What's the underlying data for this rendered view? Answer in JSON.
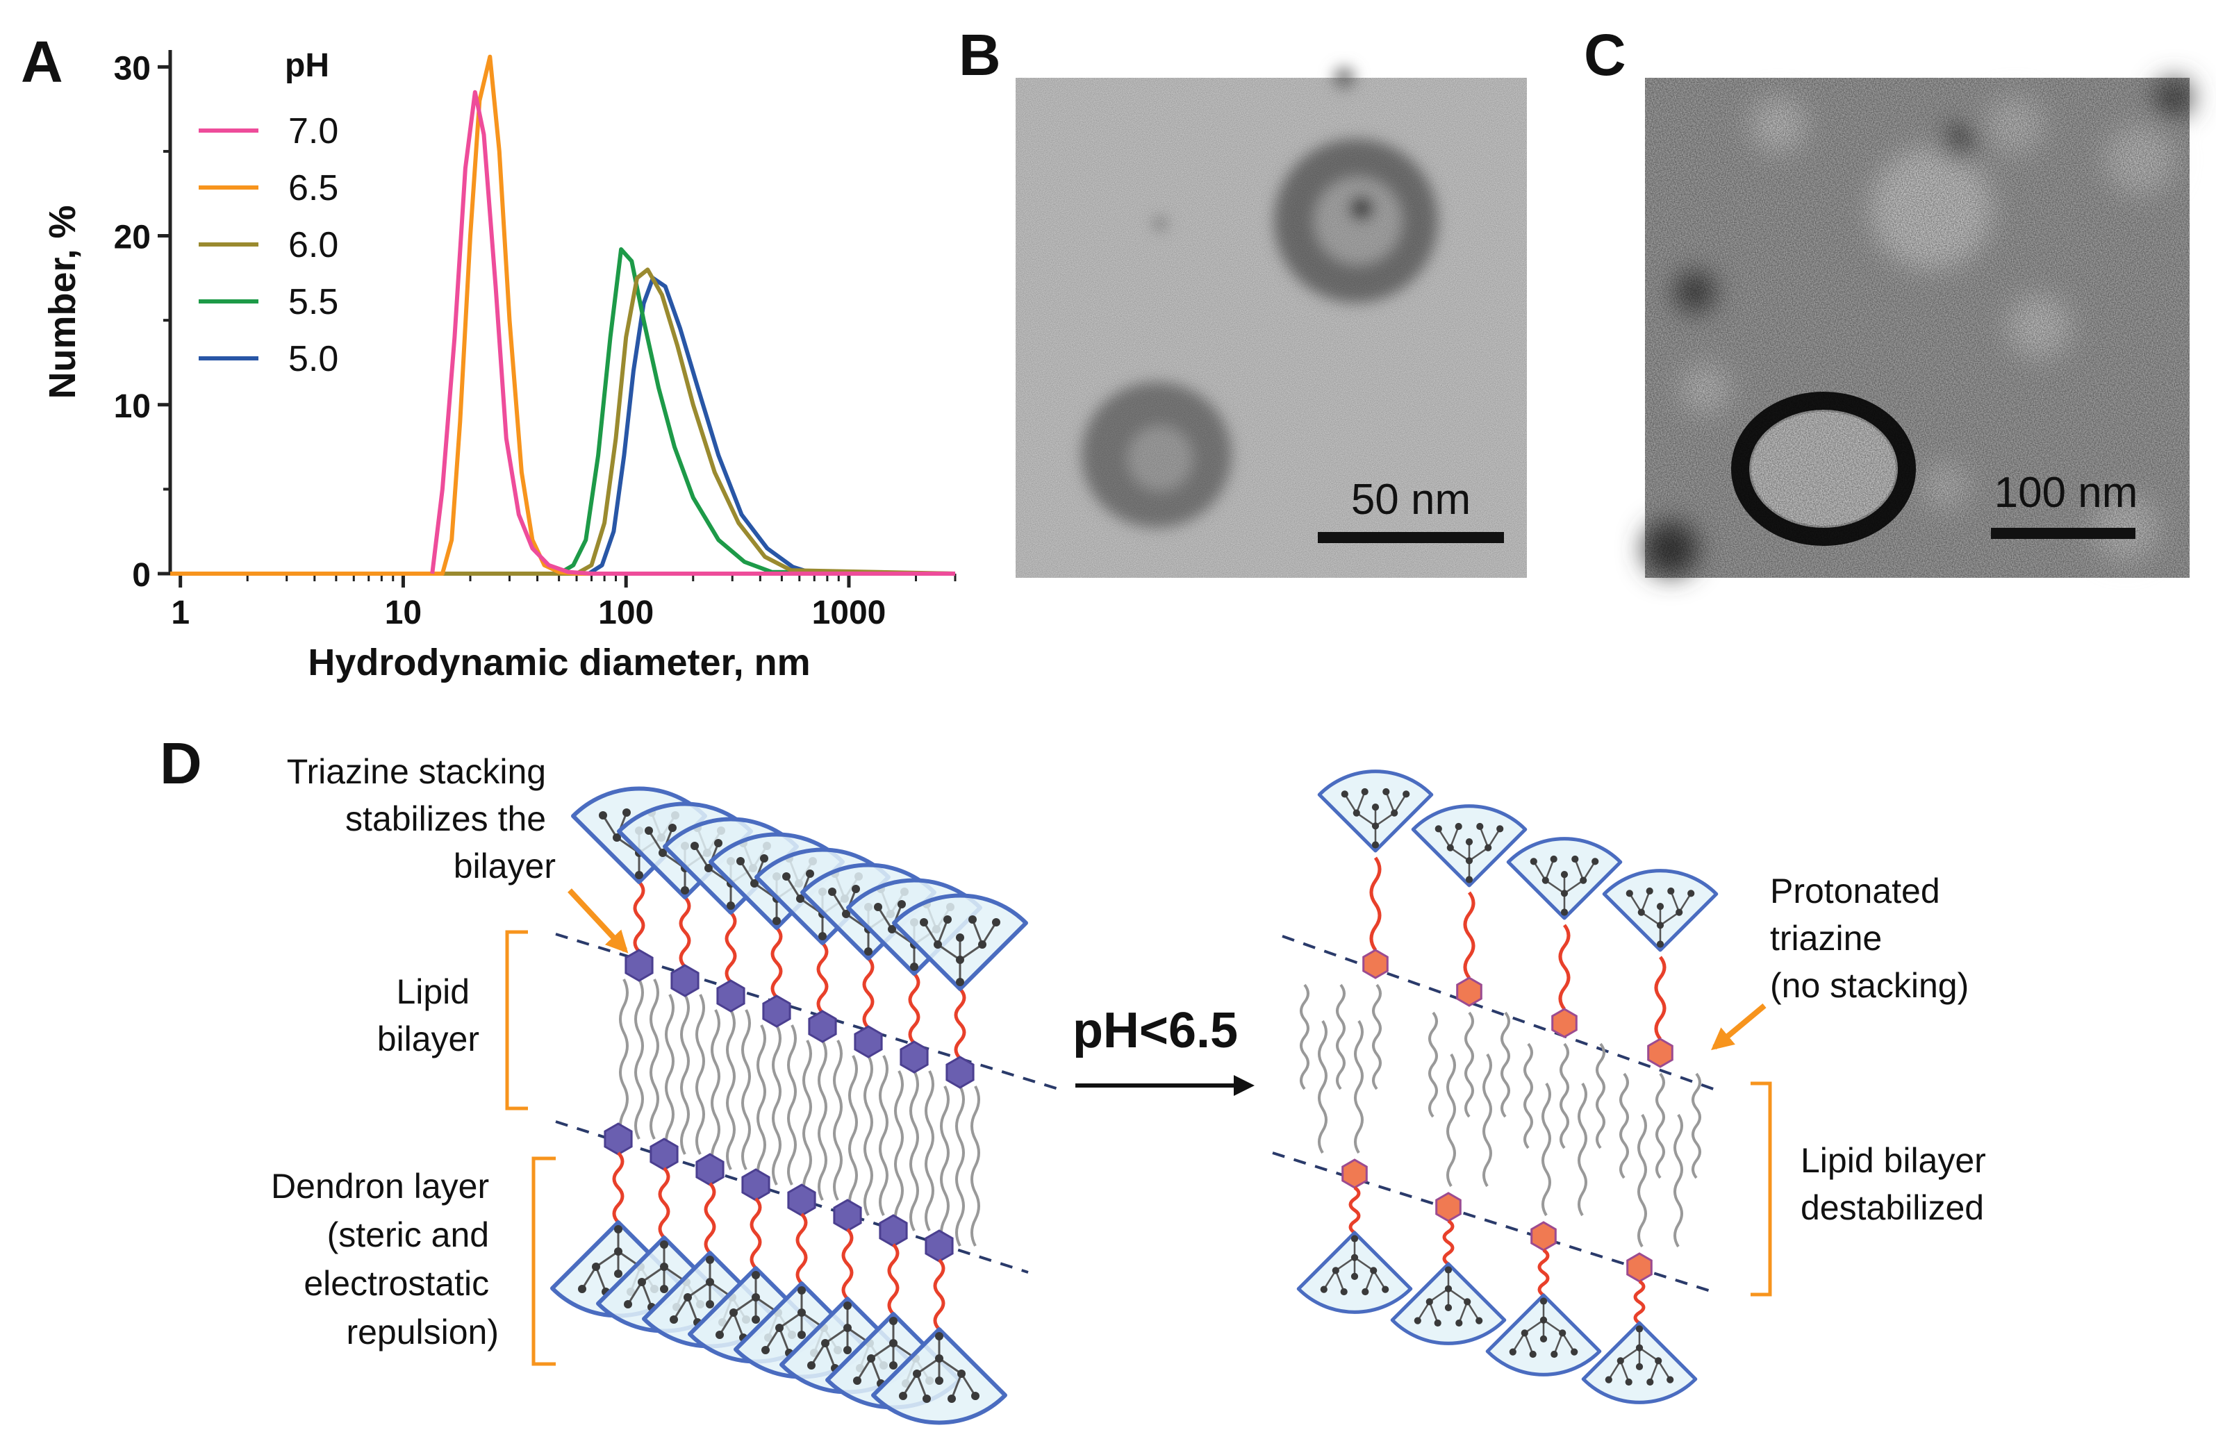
{
  "panels": {
    "a": "A",
    "b": "B",
    "c": "C",
    "d": "D"
  },
  "chart_data": {
    "type": "line",
    "xscale": "log",
    "xlabel": "Hydrodynamic diameter, nm",
    "ylabel": "Number, %",
    "xlim": [
      0.9,
      3000
    ],
    "ylim": [
      0,
      31
    ],
    "xticks": [
      "1",
      "10",
      "100",
      "1000"
    ],
    "yticks": [
      "0",
      "10",
      "20",
      "30"
    ],
    "legend_title": "pH",
    "legend_position": "top-left",
    "series": [
      {
        "name": "7.0",
        "color": "#ee4c9a",
        "x": [
          13.5,
          15,
          17,
          19,
          21,
          23,
          26,
          29,
          33,
          38,
          45,
          55,
          70,
          3000
        ],
        "y": [
          0,
          5,
          14,
          24,
          28.5,
          26,
          17,
          8,
          3.5,
          1.5,
          0.5,
          0.1,
          0,
          0
        ]
      },
      {
        "name": "6.5",
        "color": "#f7941d",
        "x": [
          0.9,
          15,
          16.5,
          18,
          20,
          22,
          24.5,
          27,
          30,
          34,
          38,
          43,
          50,
          60,
          3000
        ],
        "y": [
          0,
          0,
          2,
          9,
          20,
          28,
          30.6,
          25,
          15,
          6,
          2,
          0.5,
          0.1,
          0,
          0
        ]
      },
      {
        "name": "6.0",
        "color": "#9a8a2f",
        "x": [
          0.9,
          60,
          70,
          80,
          90,
          100,
          112,
          125,
          145,
          170,
          200,
          250,
          320,
          420,
          550,
          3000
        ],
        "y": [
          0,
          0,
          0.5,
          3,
          8,
          14,
          17.5,
          18,
          16.5,
          13.5,
          10,
          6,
          3,
          1,
          0.2,
          0
        ]
      },
      {
        "name": "5.5",
        "color": "#1d9a48",
        "x": [
          0.9,
          50,
          58,
          66,
          75,
          85,
          95,
          106,
          120,
          140,
          165,
          200,
          260,
          340,
          450,
          3000
        ],
        "y": [
          0,
          0,
          0.5,
          2,
          7,
          14,
          19.2,
          18.5,
          15,
          11,
          7.5,
          4.5,
          2,
          0.7,
          0.1,
          0
        ]
      },
      {
        "name": "5.0",
        "color": "#2856a6",
        "x": [
          0.9,
          68,
          78,
          88,
          98,
          108,
          120,
          132,
          150,
          175,
          210,
          260,
          330,
          430,
          560,
          700,
          3000
        ],
        "y": [
          0,
          0,
          0.5,
          2.5,
          7,
          12,
          16,
          17.5,
          17,
          14.5,
          11,
          7,
          3.5,
          1.5,
          0.4,
          0,
          0
        ]
      }
    ]
  },
  "micrographs": {
    "b_scale": "50 nm",
    "c_scale": "100 nm"
  },
  "diagram": {
    "left_annotations": {
      "stacking": [
        "Triazine stacking",
        "stabilizes the",
        "bilayer"
      ],
      "lipid": [
        "Lipid",
        "bilayer"
      ],
      "dendron": [
        "Dendron layer",
        "(steric and",
        "electrostatic",
        "repulsion)"
      ]
    },
    "transition": "pH<6.5",
    "right_annotations": {
      "protonated": [
        "Protonated",
        "triazine",
        "(no stacking)"
      ],
      "destabilized": [
        "Lipid bilayer",
        "destabilized"
      ]
    },
    "colors": {
      "dendron_fill": "#e3f2f8",
      "dendron_stroke": "#4a6cc0",
      "triazine_stacked": "#6a5fb0",
      "triazine_protonated": "#f07a52",
      "linker": "#e8402a",
      "lipid_tail": "#999999",
      "bracket": "#f7941d",
      "dash": "#2a3a6a"
    }
  }
}
